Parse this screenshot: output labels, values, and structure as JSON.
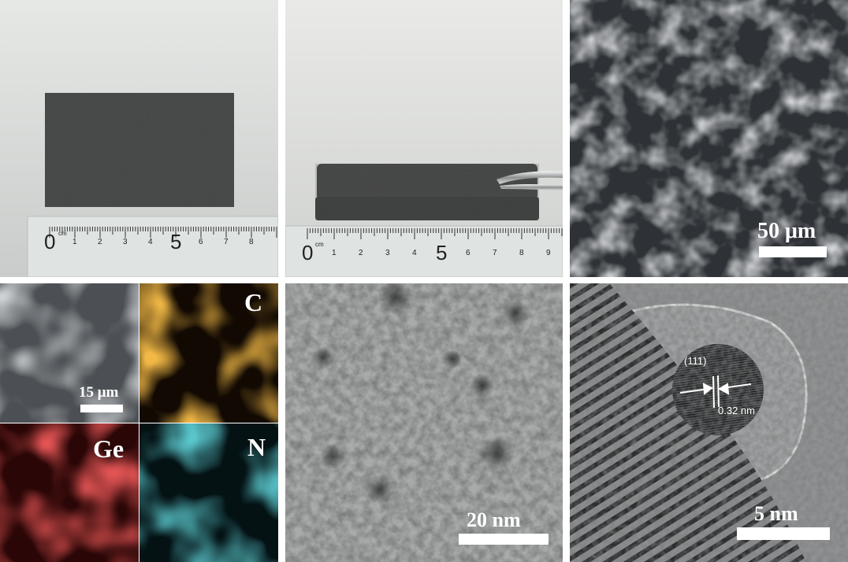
{
  "panels": {
    "a": {
      "ruler_unit": "cm",
      "ruler_numbers": [
        "0",
        "1",
        "2",
        "3",
        "4",
        "5",
        "6",
        "7",
        "8"
      ]
    },
    "b": {
      "ruler_unit": "cm",
      "ruler_numbers": [
        "0",
        "1",
        "2",
        "3",
        "4",
        "5",
        "6",
        "7",
        "8",
        "9"
      ]
    },
    "c": {
      "scale_label": "50 μm"
    },
    "d": {
      "scale_label": "15 μm",
      "element_labels": {
        "c": "C",
        "ge": "Ge",
        "n": "N"
      },
      "colors": {
        "c": "#e07a10",
        "ge": "#c41818",
        "n": "#1a8f9a"
      }
    },
    "e": {
      "scale_label": "20 nm"
    },
    "f": {
      "scale_label": "5 nm",
      "plane_label": "(111)",
      "spacing_label": "0.32 nm"
    }
  }
}
